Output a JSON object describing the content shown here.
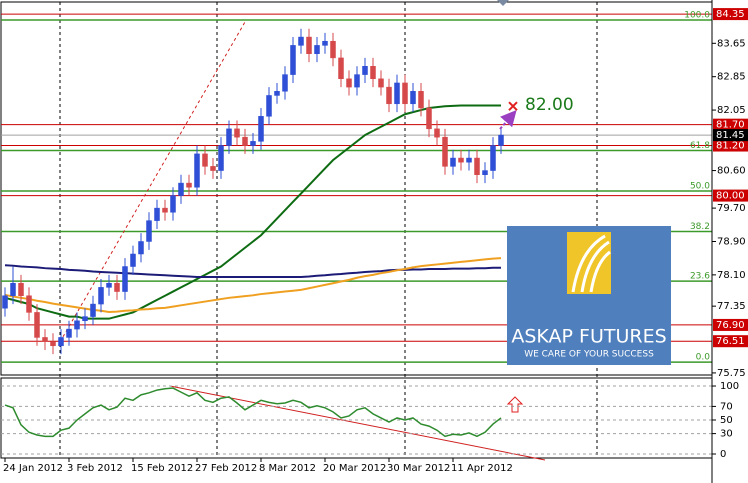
{
  "chart_data": {
    "type": "candlestick",
    "categories": [
      "24 Jan 2012",
      null,
      null,
      null,
      null,
      null,
      null,
      null,
      "3 Feb 2012",
      null,
      null,
      null,
      null,
      null,
      null,
      null,
      "15 Feb 2012",
      null,
      null,
      null,
      null,
      null,
      null,
      null,
      "27 Feb 2012",
      null,
      null,
      null,
      null,
      null,
      null,
      null,
      "8 Mar 2012",
      null,
      null,
      null,
      null,
      null,
      null,
      null,
      "20 Mar 2012",
      null,
      null,
      null,
      null,
      null,
      null,
      null,
      "30 Mar 2012",
      null,
      null,
      null,
      null,
      null,
      null,
      null,
      "11 Apr 2012",
      null,
      null,
      null,
      null,
      null,
      null
    ],
    "open": [
      77.3,
      77.6,
      77.9,
      77.6,
      77.2,
      76.6,
      76.5,
      76.4,
      76.6,
      76.8,
      77.0,
      77.1,
      77.4,
      77.8,
      77.9,
      77.7,
      78.3,
      78.6,
      78.9,
      79.4,
      79.7,
      79.6,
      80.0,
      80.3,
      80.2,
      81.0,
      80.7,
      80.6,
      81.2,
      81.6,
      81.4,
      81.2,
      81.3,
      81.9,
      82.4,
      82.5,
      82.9,
      83.6,
      83.8,
      83.4,
      83.6,
      83.7,
      83.3,
      82.8,
      82.6,
      82.9,
      83.1,
      82.8,
      82.6,
      82.2,
      82.7,
      82.2,
      82.5,
      82.1,
      81.6,
      81.4,
      80.7,
      80.9,
      80.8,
      80.9,
      80.5,
      80.6,
      81.2
    ],
    "high": [
      77.8,
      78.3,
      78.1,
      77.8,
      77.4,
      76.8,
      76.7,
      76.8,
      77.0,
      77.2,
      77.3,
      77.6,
      78.0,
      78.1,
      78.1,
      78.5,
      78.8,
      79.1,
      79.6,
      79.9,
      79.9,
      80.2,
      80.5,
      80.5,
      81.2,
      81.2,
      80.9,
      81.4,
      81.8,
      81.8,
      81.6,
      81.5,
      82.1,
      82.6,
      82.7,
      83.1,
      83.8,
      84.0,
      84.0,
      83.8,
      83.9,
      83.9,
      83.5,
      83.0,
      83.1,
      83.3,
      83.3,
      83.0,
      82.8,
      82.9,
      82.9,
      82.7,
      82.7,
      82.3,
      81.8,
      81.6,
      81.1,
      81.1,
      81.1,
      81.1,
      80.8,
      81.4,
      81.65
    ],
    "low": [
      77.1,
      77.4,
      77.4,
      77.0,
      76.4,
      76.3,
      76.2,
      76.2,
      76.4,
      76.6,
      76.8,
      76.9,
      77.2,
      77.6,
      77.5,
      77.5,
      78.1,
      78.4,
      78.7,
      79.2,
      79.4,
      79.4,
      79.8,
      80.0,
      80.0,
      80.5,
      80.4,
      80.4,
      81.0,
      81.2,
      81.0,
      81.0,
      81.1,
      81.7,
      82.2,
      82.3,
      82.7,
      83.4,
      83.2,
      83.2,
      83.4,
      83.1,
      82.6,
      82.4,
      82.4,
      82.7,
      82.6,
      82.4,
      82.0,
      82.0,
      82.0,
      82.0,
      81.9,
      81.4,
      81.2,
      80.5,
      80.5,
      80.6,
      80.6,
      80.3,
      80.3,
      80.4,
      81.0
    ],
    "close": [
      77.6,
      77.9,
      77.6,
      77.2,
      76.6,
      76.5,
      76.4,
      76.6,
      76.8,
      77.0,
      77.1,
      77.4,
      77.8,
      77.9,
      77.7,
      78.3,
      78.6,
      78.9,
      79.4,
      79.7,
      79.6,
      80.0,
      80.3,
      80.2,
      81.0,
      80.7,
      80.6,
      81.2,
      81.6,
      81.4,
      81.2,
      81.3,
      81.9,
      82.4,
      82.5,
      82.9,
      83.6,
      83.8,
      83.4,
      83.6,
      83.7,
      83.3,
      82.8,
      82.6,
      82.9,
      83.1,
      82.8,
      82.6,
      82.2,
      82.7,
      82.2,
      82.5,
      82.1,
      81.6,
      81.4,
      80.7,
      80.9,
      80.8,
      80.9,
      80.5,
      80.6,
      81.2,
      81.45
    ],
    "up_color": "#2e4fd6",
    "down_color": "#d6494b",
    "lines": [
      {
        "color": "#0d6b12",
        "values": [
          77.55,
          77.5,
          77.45,
          77.4,
          77.3,
          77.25,
          77.2,
          77.15,
          77.1,
          77.1,
          77.05,
          77.05,
          77.05,
          77.05,
          77.1,
          77.15,
          77.2,
          77.3,
          77.4,
          77.5,
          77.6,
          77.7,
          77.8,
          77.9,
          78.0,
          78.1,
          78.2,
          78.3,
          78.45,
          78.6,
          78.75,
          78.9,
          79.05,
          79.25,
          79.45,
          79.65,
          79.85,
          80.05,
          80.25,
          80.45,
          80.65,
          80.85,
          81.0,
          81.15,
          81.3,
          81.45,
          81.55,
          81.65,
          81.75,
          81.85,
          81.95,
          82.0,
          82.05,
          82.1,
          82.12,
          82.14,
          82.15,
          82.16,
          82.16,
          82.16,
          82.16,
          82.16,
          82.16
        ]
      },
      {
        "color": "#1c1c78",
        "values": [
          78.33,
          78.32,
          78.3,
          78.29,
          78.28,
          78.26,
          78.25,
          78.24,
          78.22,
          78.21,
          78.2,
          78.18,
          78.17,
          78.16,
          78.15,
          78.14,
          78.13,
          78.12,
          78.11,
          78.1,
          78.09,
          78.08,
          78.07,
          78.06,
          78.05,
          78.05,
          78.05,
          78.05,
          78.05,
          78.05,
          78.05,
          78.05,
          78.05,
          78.05,
          78.05,
          78.05,
          78.05,
          78.05,
          78.06,
          78.08,
          78.09,
          78.11,
          78.12,
          78.14,
          78.15,
          78.17,
          78.18,
          78.19,
          78.21,
          78.22,
          78.22,
          78.23,
          78.23,
          78.24,
          78.24,
          78.24,
          78.25,
          78.25,
          78.25,
          78.26,
          78.26,
          78.27,
          78.27
        ]
      },
      {
        "color": "#f0a020",
        "values": [
          77.62,
          77.58,
          77.55,
          77.52,
          77.48,
          77.45,
          77.41,
          77.38,
          77.35,
          77.32,
          77.29,
          77.26,
          77.24,
          77.21,
          77.22,
          77.24,
          77.25,
          77.27,
          77.28,
          77.3,
          77.31,
          77.34,
          77.37,
          77.4,
          77.43,
          77.46,
          77.49,
          77.52,
          77.55,
          77.57,
          77.59,
          77.61,
          77.64,
          77.66,
          77.68,
          77.7,
          77.72,
          77.74,
          77.78,
          77.82,
          77.86,
          77.9,
          77.94,
          77.98,
          78.03,
          78.07,
          78.1,
          78.14,
          78.17,
          78.21,
          78.24,
          78.28,
          78.31,
          78.33,
          78.35,
          78.37,
          78.39,
          78.41,
          78.43,
          78.45,
          78.47,
          78.49,
          78.5
        ]
      }
    ],
    "ylim": [
      75.7,
      84.64
    ],
    "yticks": [
      83.65,
      82.85,
      82.05,
      {
        "value": 80.6,
        "label": "80.60"
      },
      {
        "value": 79.7,
        "label": "79.70"
      },
      {
        "value": 78.9,
        "label": "78.90"
      },
      {
        "value": 78.1,
        "label": "78.10"
      },
      77.35,
      75.75
    ],
    "price_levels": [
      84.35,
      {
        "value": 81.7,
        "label": "81.70"
      },
      {
        "value": 81.2,
        "label": "81.20"
      },
      {
        "value": 80,
        "label": "80.00"
      },
      {
        "value": 76.9,
        "label": "76.90"
      },
      76.51
    ],
    "level_color": "#cc0000",
    "current_price": 81.45,
    "fib_color": "#3c9a2a",
    "fib_levels": [
      {
        "ratio": {
          "value": 100,
          "label": "100.0"
        },
        "price": 84.21
      },
      {
        "ratio": 61.8,
        "price": 81.08
      },
      {
        "ratio": {
          "value": 50,
          "label": "50.0"
        },
        "price": 80.11
      },
      {
        "ratio": 38.2,
        "price": 79.14
      },
      {
        "ratio": 23.6,
        "price": 77.95
      },
      {
        "ratio": {
          "value": 0,
          "label": "0.0"
        },
        "price": 76.01
      }
    ],
    "target": {
      "value": 82,
      "label": "82.00"
    },
    "logo": {
      "title": "ASKAP FUTURES",
      "tagline": "WE CARE OF YOUR SUCCESS"
    },
    "oscillator": {
      "color": "#2e8b2e",
      "ylim": [
        -5.9,
        111.8
      ],
      "yticks": [
        100,
        70,
        50,
        30,
        0
      ],
      "values": [
        72,
        68,
        43,
        32,
        28,
        26,
        26,
        35,
        38,
        50,
        59,
        68,
        72,
        65,
        69,
        82,
        79,
        87,
        90,
        94,
        96,
        97,
        91,
        85,
        90,
        79,
        76,
        82,
        84,
        75,
        65,
        72,
        79,
        76,
        74,
        75,
        79,
        76,
        68,
        71,
        68,
        62,
        53,
        56,
        65,
        68,
        59,
        53,
        47,
        53,
        50,
        53,
        44,
        41,
        35,
        26,
        29,
        28,
        31,
        26,
        32,
        44,
        53
      ]
    }
  }
}
